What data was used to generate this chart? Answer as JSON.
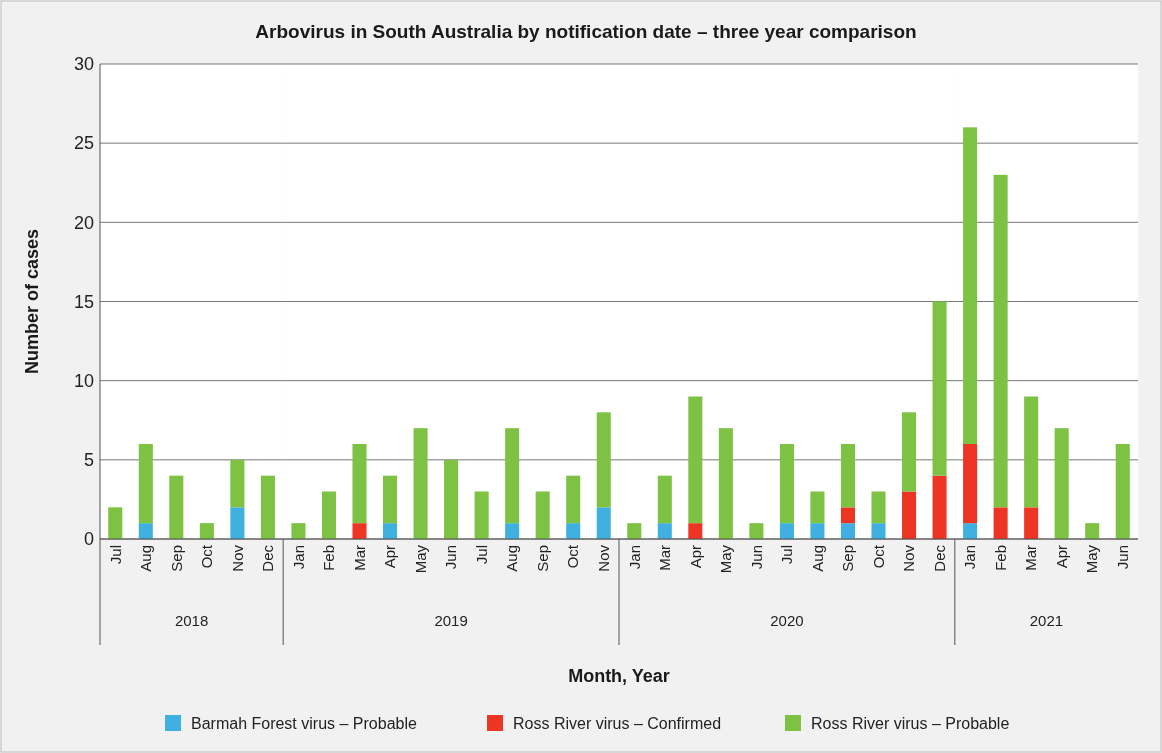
{
  "chart_data": [
    {
      "type": "bar",
      "xlabel": "2018",
      "ylabel": "Number of cases",
      "annotations": [
        "Month, Year"
      ],
      "categories": [
        "Jul",
        "Aug",
        "Sep",
        "Oct",
        "Nov",
        "Dec"
      ],
      "series": [
        {
          "name": "Barmah Forest virus – Probable",
          "color": "#3fb0e0",
          "values": [
            0,
            1,
            0,
            0,
            2,
            0
          ]
        },
        {
          "name": "Ross River virus – Confirmed",
          "color": "#ee3524",
          "values": [
            0,
            0,
            0,
            0,
            0,
            0
          ]
        },
        {
          "name": "Ross River virus – Probable",
          "color": "#7dc242",
          "values": [
            2,
            5,
            4,
            1,
            3,
            4
          ]
        }
      ],
      "stacked": true,
      "ylim": [
        0,
        30
      ],
      "yticks": [
        0,
        5,
        10,
        15,
        20,
        25,
        30
      ],
      "grid": "y",
      "legend": "bottom"
    },
    {
      "type": "bar",
      "title": "Arbovirus in South Australia by notification date – three year comparison",
      "xlabel": "2019",
      "categories": [
        "Jan",
        "Feb",
        "Mar",
        "Apr",
        "May",
        "Jun",
        "Jul",
        "Aug",
        "Sep",
        "Oct",
        "Nov"
      ],
      "series": [
        {
          "color": "#3fb0e0",
          "values": [
            0,
            0,
            0,
            1,
            0,
            0,
            0,
            1,
            0,
            1,
            2
          ]
        },
        {
          "color": "#ee3524",
          "values": [
            0,
            0,
            1,
            0,
            0,
            0,
            0,
            0,
            0,
            0,
            0
          ]
        },
        {
          "color": "#7dc242",
          "values": [
            1,
            3,
            5,
            3,
            7,
            5,
            3,
            6,
            3,
            3,
            6
          ]
        }
      ],
      "stacked": true,
      "ylim": [
        0,
        30
      ],
      "grid": "y",
      "tick_labels": "x"
    },
    {
      "type": "bar",
      "xlabel": "2020",
      "categories": [
        "Jan",
        "Mar",
        "Apr",
        "May",
        "Jun",
        "Jul",
        "Aug",
        "Sep",
        "Oct",
        "Nov",
        "Dec"
      ],
      "series": [
        {
          "color": "#3fb0e0",
          "values": [
            0,
            1,
            0,
            0,
            0,
            1,
            1,
            1,
            1,
            0,
            0
          ]
        },
        {
          "color": "#ee3524",
          "values": [
            0,
            0,
            1,
            0,
            0,
            0,
            0,
            1,
            0,
            3,
            4
          ]
        },
        {
          "color": "#7dc242",
          "values": [
            1,
            3,
            8,
            7,
            1,
            5,
            2,
            4,
            2,
            5,
            11
          ]
        }
      ],
      "stacked": true,
      "ylim": [
        0,
        30
      ],
      "grid": "y",
      "tick_labels": "x"
    },
    {
      "type": "bar",
      "xlabel": "2021",
      "categories": [
        "Jan",
        "Feb",
        "Mar",
        "Apr",
        "May",
        "Jun"
      ],
      "series": [
        {
          "color": "#3fb0e0",
          "values": [
            1,
            0,
            0,
            0,
            0,
            0
          ]
        },
        {
          "color": "#ee3524",
          "values": [
            5,
            2,
            2,
            0,
            0,
            0
          ]
        },
        {
          "color": "#7dc242",
          "values": [
            20,
            21,
            7,
            7,
            1,
            6
          ]
        }
      ],
      "stacked": true,
      "ylim": [
        0,
        30
      ],
      "grid": "y",
      "tick_labels": "x"
    }
  ]
}
